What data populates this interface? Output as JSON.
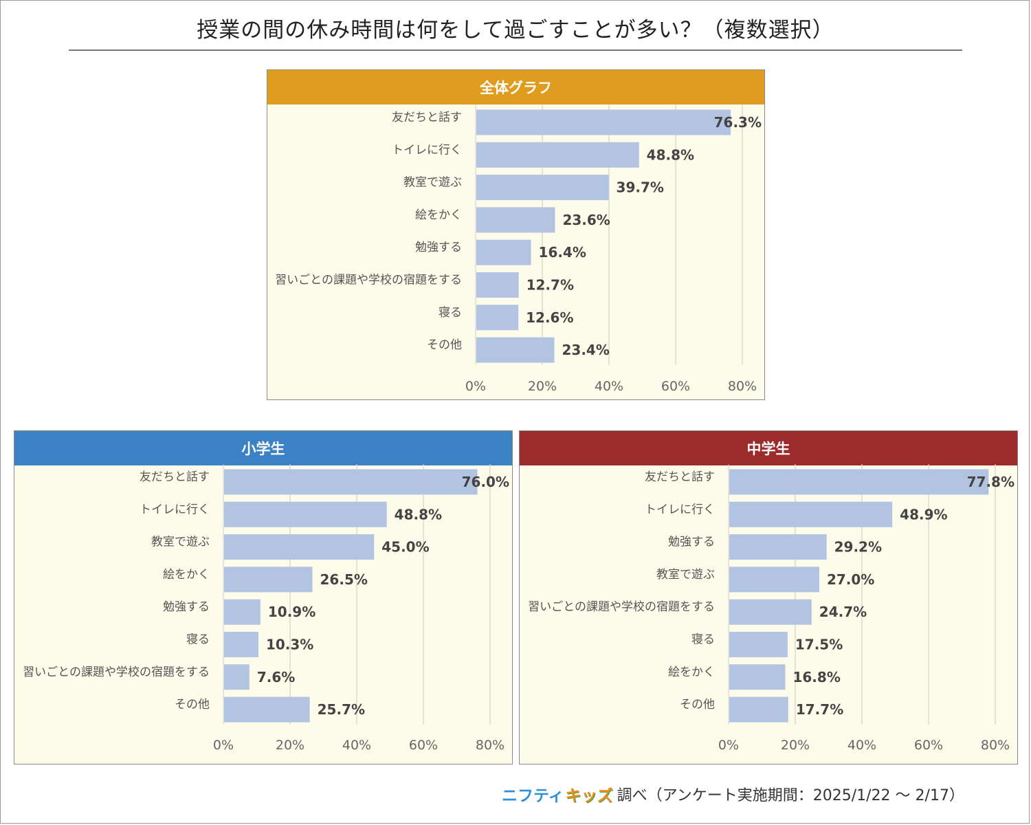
{
  "title": "授業の間の休み時間は何をして過ごすことが多い？（複数選択）",
  "footer": {
    "logo_part1": "ニフティ",
    "logo_part2": "キッズ",
    "text": "調べ（アンケート実施期間：2025/1/22 ～ 2/17）"
  },
  "colors": {
    "overall_header": "#e09c1e",
    "elementary_header": "#3a82c4",
    "junior_high_header": "#9c2b2b",
    "bar": "#b3c3e2",
    "panel_bg": "#fdfbea"
  },
  "chart_data": [
    {
      "type": "bar",
      "orientation": "horizontal",
      "title": "全体グラフ",
      "categories": [
        "友だちと話す",
        "トイレに行く",
        "教室で遊ぶ",
        "絵をかく",
        "勉強する",
        "習いごとの課題や学校の宿題をする",
        "寝る",
        "その他"
      ],
      "values": [
        76.3,
        48.8,
        39.7,
        23.6,
        16.4,
        12.7,
        12.6,
        23.4
      ],
      "value_labels": [
        "76.3%",
        "48.8%",
        "39.7%",
        "23.6%",
        "16.4%",
        "12.7%",
        "12.6%",
        "23.4%"
      ],
      "xlim": [
        0,
        80
      ],
      "ticks": [
        "0%",
        "20%",
        "40%",
        "60%",
        "80%"
      ],
      "grid": true
    },
    {
      "type": "bar",
      "orientation": "horizontal",
      "title": "小学生",
      "categories": [
        "友だちと話す",
        "トイレに行く",
        "教室で遊ぶ",
        "絵をかく",
        "勉強する",
        "寝る",
        "習いごとの課題や学校の宿題をする",
        "その他"
      ],
      "values": [
        76.0,
        48.8,
        45.0,
        26.5,
        10.9,
        10.3,
        7.6,
        25.7
      ],
      "value_labels": [
        "76.0%",
        "48.8%",
        "45.0%",
        "26.5%",
        "10.9%",
        "10.3%",
        "7.6%",
        "25.7%"
      ],
      "xlim": [
        0,
        80
      ],
      "ticks": [
        "0%",
        "20%",
        "40%",
        "60%",
        "80%"
      ],
      "grid": true
    },
    {
      "type": "bar",
      "orientation": "horizontal",
      "title": "中学生",
      "categories": [
        "友だちと話す",
        "トイレに行く",
        "勉強する",
        "教室で遊ぶ",
        "習いごとの課題や学校の宿題をする",
        "寝る",
        "絵をかく",
        "その他"
      ],
      "values": [
        77.8,
        48.9,
        29.2,
        27.0,
        24.7,
        17.5,
        16.8,
        17.7
      ],
      "value_labels": [
        "77.8%",
        "48.9%",
        "29.2%",
        "27.0%",
        "24.7%",
        "17.5%",
        "16.8%",
        "17.7%"
      ],
      "xlim": [
        0,
        80
      ],
      "ticks": [
        "0%",
        "20%",
        "40%",
        "60%",
        "80%"
      ],
      "grid": true
    }
  ]
}
